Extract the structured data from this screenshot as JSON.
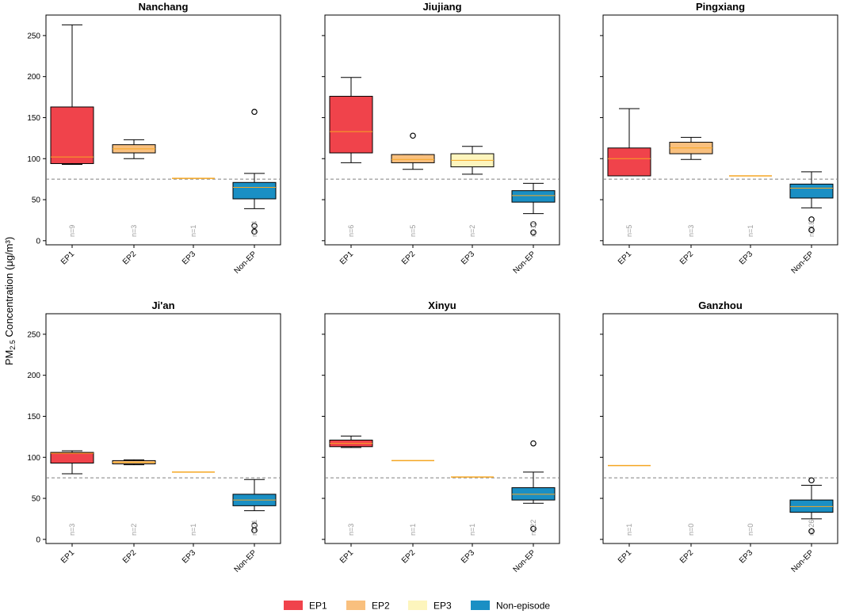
{
  "chart_data": {
    "type": "box",
    "ylabel_prefix": "PM",
    "ylabel_sub": "2.5",
    "ylabel_suffix": " Concentration (μg/m³)",
    "ylim": [
      -5,
      275
    ],
    "yticks": [
      0,
      50,
      100,
      150,
      200,
      250
    ],
    "reference_line": 75,
    "categories": [
      "EP1",
      "EP2",
      "EP3",
      "Non-EP"
    ],
    "colors": {
      "EP1": "#f0434b",
      "EP2": "#f9c07e",
      "EP3": "#fdf5bd",
      "Non-EP": "#1a8fc4",
      "median": "#f5a623",
      "refline": "#808080"
    },
    "legend": [
      {
        "label": "EP1",
        "key": "EP1"
      },
      {
        "label": "EP2",
        "key": "EP2"
      },
      {
        "label": "EP3",
        "key": "EP3"
      },
      {
        "label": "Non-episode",
        "key": "Non-EP"
      }
    ],
    "panels": [
      {
        "title": "Nanchang",
        "boxes": [
          {
            "cat": "EP1",
            "n": "n=9",
            "min": 93,
            "q1": 94,
            "med": 102,
            "q3": 163,
            "max": 263,
            "outliers": []
          },
          {
            "cat": "EP2",
            "n": "n=3",
            "min": 100,
            "q1": 107,
            "med": 112,
            "q3": 117,
            "max": 123,
            "outliers": []
          },
          {
            "cat": "EP3",
            "n": "n=1",
            "single": 76
          },
          {
            "cat": "Non-EP",
            "n": "n=14",
            "min": 39,
            "q1": 51,
            "med": 65,
            "q3": 71,
            "max": 82,
            "outliers": [
              157,
              18,
              11
            ]
          }
        ]
      },
      {
        "title": "Jiujiang",
        "boxes": [
          {
            "cat": "EP1",
            "n": "n=6",
            "min": 95,
            "q1": 107,
            "med": 133,
            "q3": 176,
            "max": 199,
            "outliers": []
          },
          {
            "cat": "EP2",
            "n": "n=5",
            "min": 87,
            "q1": 95,
            "med": 99,
            "q3": 105,
            "max": 105,
            "outliers": [
              128
            ]
          },
          {
            "cat": "EP3",
            "n": "n=2",
            "min": 81,
            "q1": 90,
            "med": 98,
            "q3": 106,
            "max": 115,
            "outliers": []
          },
          {
            "cat": "Non-EP",
            "n": "n=14",
            "min": 33,
            "q1": 47,
            "med": 55,
            "q3": 61,
            "max": 70,
            "outliers": [
              20,
              10
            ]
          }
        ]
      },
      {
        "title": "Pingxiang",
        "boxes": [
          {
            "cat": "EP1",
            "n": "n=5",
            "min": 79,
            "q1": 79,
            "med": 100,
            "q3": 113,
            "max": 161,
            "outliers": []
          },
          {
            "cat": "EP2",
            "n": "n=3",
            "min": 99,
            "q1": 106,
            "med": 113,
            "q3": 120,
            "max": 126,
            "outliers": []
          },
          {
            "cat": "EP3",
            "n": "n=1",
            "single": 79
          },
          {
            "cat": "Non-EP",
            "n": "n=18",
            "min": 40,
            "q1": 52,
            "med": 64,
            "q3": 69,
            "max": 84,
            "outliers": [
              26,
              13
            ]
          }
        ]
      },
      {
        "title": "Ji'an",
        "boxes": [
          {
            "cat": "EP1",
            "n": "n=3",
            "min": 80,
            "q1": 93,
            "med": 105,
            "q3": 106,
            "max": 108,
            "outliers": []
          },
          {
            "cat": "EP2",
            "n": "n=2",
            "min": 91,
            "q1": 92,
            "med": 94,
            "q3": 96,
            "max": 97,
            "outliers": []
          },
          {
            "cat": "EP3",
            "n": "n=1",
            "single": 82
          },
          {
            "cat": "Non-EP",
            "n": "n=21",
            "min": 35,
            "q1": 41,
            "med": 48,
            "q3": 55,
            "max": 73,
            "outliers": [
              17,
              11
            ]
          }
        ]
      },
      {
        "title": "Xinyu",
        "boxes": [
          {
            "cat": "EP1",
            "n": "n=3",
            "min": 112,
            "q1": 113,
            "med": 117,
            "q3": 121,
            "max": 126,
            "outliers": []
          },
          {
            "cat": "EP2",
            "n": "n=1",
            "single": 96
          },
          {
            "cat": "EP3",
            "n": "n=1",
            "single": 76
          },
          {
            "cat": "Non-EP",
            "n": "n=22",
            "min": 44,
            "q1": 48,
            "med": 55,
            "q3": 63,
            "max": 82,
            "outliers": [
              117,
              13
            ]
          }
        ]
      },
      {
        "title": "Ganzhou",
        "boxes": [
          {
            "cat": "EP1",
            "n": "n=1",
            "single": 90
          },
          {
            "cat": "EP2",
            "n": "n=0"
          },
          {
            "cat": "EP3",
            "n": "n=0"
          },
          {
            "cat": "Non-EP",
            "n": "n=26",
            "min": 25,
            "q1": 33,
            "med": 40,
            "q3": 48,
            "max": 66,
            "outliers": [
              72,
              10
            ]
          }
        ]
      }
    ]
  }
}
